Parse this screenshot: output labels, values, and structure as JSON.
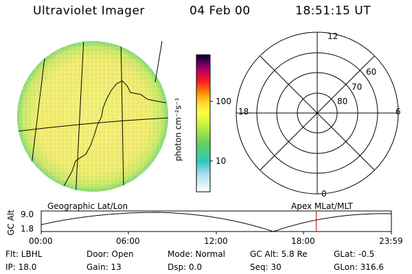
{
  "header": {
    "title": "Ultraviolet Imager",
    "date": "04 Feb 00",
    "time": "18:51:15 UT"
  },
  "colorbar": {
    "unit_label": "photon cm⁻²s⁻¹",
    "ticks": [
      {
        "label": "100",
        "value": 100
      },
      {
        "label": "10",
        "value": 10
      }
    ]
  },
  "polar": {
    "mlt_labels": {
      "top": "12",
      "bottom": "0",
      "left": "18",
      "right": "6"
    },
    "lat_labels": [
      "60",
      "70",
      "80"
    ]
  },
  "timeline": {
    "left_label": "Geographic Lat/Lon",
    "right_label": "Apex MLat/MLT",
    "y_axis_label": "GC Alt",
    "y_ticks": [
      "9.0",
      "1.8"
    ],
    "x_ticks": [
      "00:00",
      "06:00",
      "12:00",
      "18:00",
      "23:59"
    ],
    "current_time_hours": 18.85,
    "marker_color": "#d00000"
  },
  "status": {
    "flt": "Flt: LBHL",
    "door": "Door: Open",
    "mode": "Mode: Normal",
    "gc_alt": "GC Alt: 5.8 Re",
    "glat": "GLat:  -0.5",
    "ip": "IP: 18.0",
    "gain": "Gain: 13",
    "dsp": "Dsp:    0.0",
    "seq": "Seq: 30",
    "glon": "GLon: 316.6"
  }
}
